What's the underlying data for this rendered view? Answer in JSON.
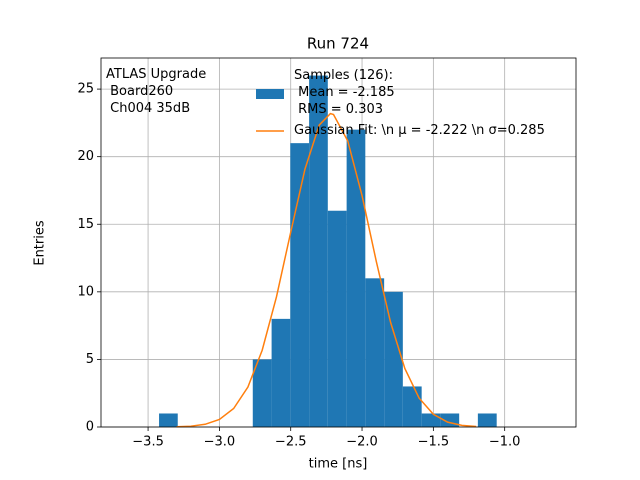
{
  "chart_data": {
    "type": "histogram",
    "title": "Run 724",
    "xlabel": "time [ns]",
    "ylabel": "Entries",
    "annotation": "ATLAS Upgrade\n Board260\n Ch004 35dB",
    "bins": [
      -3.423,
      -3.292,
      -3.16,
      -3.029,
      -2.897,
      -2.766,
      -2.634,
      -2.503,
      -2.371,
      -2.24,
      -2.108,
      -1.977,
      -1.845,
      -1.714,
      -1.582,
      -1.451,
      -1.319,
      -1.188,
      -1.056
    ],
    "series": [
      {
        "name": "Samples (126):\n Mean = -2.185\n RMS = 0.303",
        "color": "#1f77b4",
        "values": [
          1,
          0,
          0,
          0,
          0,
          5,
          8,
          21,
          26,
          16,
          22,
          11,
          10,
          3,
          1,
          1,
          0,
          1
        ]
      }
    ],
    "fit": {
      "type": "line",
      "name": "Gaussian Fit: \\n μ = -2.222 \\n σ=0.285",
      "color": "#ff7f0e",
      "x": [
        -3.3,
        -3.2,
        -3.1,
        -3.0,
        -2.9,
        -2.8,
        -2.7,
        -2.6,
        -2.5,
        -2.4,
        -2.3,
        -2.222,
        -2.2,
        -2.1,
        -2.0,
        -1.9,
        -1.8,
        -1.7,
        -1.6,
        -1.5,
        -1.4,
        -1.3,
        -1.2
      ],
      "y": [
        0.02,
        0.06,
        0.2,
        0.56,
        1.37,
        2.96,
        5.68,
        9.62,
        14.41,
        19.08,
        22.34,
        23.19,
        23.12,
        21.16,
        17.12,
        12.25,
        7.75,
        4.33,
        2.14,
        0.94,
        0.36,
        0.12,
        0.04
      ]
    },
    "xlim": [
      -3.83,
      -0.5
    ],
    "ylim": [
      0,
      27.3
    ],
    "xticks": [
      {
        "value": -3.5,
        "label": "−3.5"
      },
      {
        "value": -3.0,
        "label": "−3.0"
      },
      {
        "value": -2.5,
        "label": "−2.5"
      },
      {
        "value": -2.0,
        "label": "−2.0"
      },
      {
        "value": -1.5,
        "label": "−1.5"
      },
      {
        "value": -1.0,
        "label": "−1.0"
      }
    ],
    "yticks": [
      0,
      5,
      10,
      15,
      20,
      25
    ],
    "grid": true
  }
}
